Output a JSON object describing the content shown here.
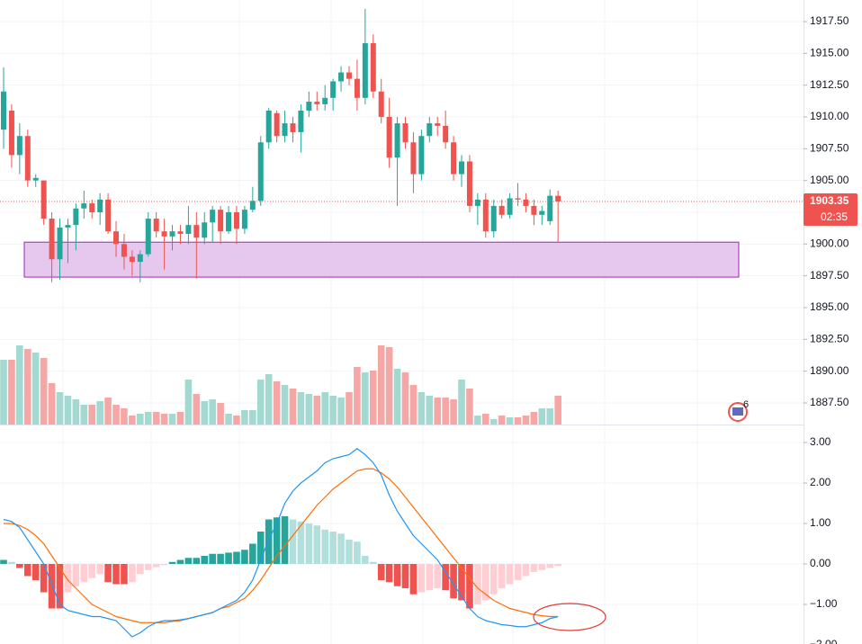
{
  "chart_data": [
    {
      "type": "candlestick",
      "open": [
        1909.0,
        1910.5,
        1907.0,
        1908.5,
        1905.0,
        1905.0,
        1902.0,
        1898.8,
        1901.3,
        1901.5,
        1902.8,
        1903.2,
        1902.5,
        1903.5,
        1901.0,
        1900.0,
        1899.0,
        1898.6,
        1899.2,
        1902.0,
        1901.0,
        1900.6,
        1901.0,
        1900.8,
        1901.5,
        1900.5,
        1901.7,
        1902.7,
        1901.0,
        1902.5,
        1901.2,
        1902.7,
        1903.4,
        1908.0,
        1910.3,
        1908.5,
        1909.5,
        1908.8,
        1910.5,
        1911.2,
        1911.0,
        1911.5,
        1912.8,
        1913.5,
        1913.0,
        1911.5,
        1915.8,
        1912.0,
        1910.0,
        1906.8,
        1909.5,
        1908.0,
        1905.5,
        1908.5,
        1909.5,
        1909.3,
        1908.0,
        1905.5,
        1906.5,
        1903.0,
        1903.5,
        1901.0,
        1903.0,
        1902.3,
        1903.6,
        1903.5,
        1903.0,
        1902.3,
        1901.8,
        1903.8
      ],
      "high": [
        1913.9,
        1911.0,
        1909.5,
        1909.0,
        1905.5,
        1905.0,
        1902.5,
        1902.0,
        1902.0,
        1903.2,
        1904.2,
        1903.5,
        1904.0,
        1904.0,
        1901.8,
        1900.8,
        1899.5,
        1899.5,
        1902.5,
        1902.5,
        1902.0,
        1901.5,
        1901.5,
        1903.0,
        1902.5,
        1902.5,
        1903.0,
        1903.0,
        1903.0,
        1903.0,
        1903.0,
        1904.5,
        1908.5,
        1910.7,
        1910.5,
        1910.5,
        1910.0,
        1911.0,
        1912.0,
        1912.0,
        1912.5,
        1913.0,
        1914.0,
        1914.0,
        1914.5,
        1918.5,
        1916.5,
        1913.0,
        1911.5,
        1910.0,
        1910.0,
        1908.8,
        1909.0,
        1910.0,
        1910.0,
        1910.5,
        1908.5,
        1907.0,
        1907.0,
        1904.0,
        1904.0,
        1903.5,
        1903.5,
        1904.0,
        1904.8,
        1904.0,
        1903.5,
        1903.0,
        1904.3,
        1904.2
      ],
      "low": [
        1907.5,
        1906.0,
        1905.5,
        1904.5,
        1904.5,
        1901.5,
        1897.0,
        1897.2,
        1898.5,
        1899.5,
        1902.0,
        1902.0,
        1901.5,
        1900.8,
        1899.0,
        1898.0,
        1897.5,
        1897.0,
        1899.0,
        1900.5,
        1898.0,
        1899.5,
        1900.0,
        1900.0,
        1897.3,
        1900.0,
        1900.2,
        1900.0,
        1900.8,
        1900.0,
        1900.8,
        1902.5,
        1903.0,
        1907.5,
        1908.0,
        1908.0,
        1908.0,
        1907.2,
        1910.0,
        1910.5,
        1910.5,
        1910.5,
        1912.0,
        1912.5,
        1910.5,
        1911.0,
        1911.5,
        1909.5,
        1906.0,
        1903.0,
        1907.5,
        1904.0,
        1905.0,
        1908.0,
        1908.5,
        1907.5,
        1905.0,
        1904.5,
        1902.5,
        1901.5,
        1900.5,
        1900.5,
        1902.0,
        1902.0,
        1903.0,
        1902.5,
        1901.5,
        1901.5,
        1901.5,
        1900.2
      ],
      "close": [
        1912.0,
        1907.0,
        1908.5,
        1905.0,
        1905.2,
        1902.0,
        1898.8,
        1901.3,
        1901.5,
        1902.8,
        1903.2,
        1902.5,
        1903.5,
        1901.0,
        1900.0,
        1899.0,
        1898.6,
        1899.2,
        1902.0,
        1901.0,
        1900.6,
        1901.0,
        1900.8,
        1901.5,
        1900.5,
        1901.7,
        1902.7,
        1901.0,
        1902.5,
        1901.2,
        1902.7,
        1903.4,
        1908.0,
        1910.5,
        1908.5,
        1909.5,
        1908.8,
        1910.5,
        1911.2,
        1911.0,
        1911.5,
        1912.8,
        1913.5,
        1913.0,
        1911.5,
        1915.8,
        1912.0,
        1910.0,
        1906.8,
        1909.5,
        1908.0,
        1905.5,
        1908.5,
        1909.5,
        1909.3,
        1908.0,
        1905.5,
        1906.5,
        1903.0,
        1903.5,
        1901.0,
        1903.0,
        1902.3,
        1903.6,
        1903.5,
        1903.0,
        1902.3,
        1902.6,
        1903.8,
        1903.35
      ],
      "ylim": [
        1885.8,
        1919.2
      ],
      "yticks": [
        {
          "value": 1887.5,
          "label": "1887.50"
        },
        {
          "value": 1890,
          "label": "1890.00"
        },
        {
          "value": 1892.5,
          "label": "1892.50"
        },
        {
          "value": 1895,
          "label": "1895.00"
        },
        {
          "value": 1897.5,
          "label": "1897.50"
        },
        {
          "value": 1900,
          "label": "1900.00"
        },
        {
          "value": 1902.5,
          "label": "1902.50"
        },
        {
          "value": 1905,
          "label": "1905.00"
        },
        {
          "value": 1907.5,
          "label": "1907.50"
        },
        {
          "value": 1910,
          "label": "1910.00"
        },
        {
          "value": 1912.5,
          "label": "1912.50"
        },
        {
          "value": 1915,
          "label": "1915.00"
        },
        {
          "value": 1917.5,
          "label": "1917.50"
        }
      ],
      "grid": true,
      "up_color": "#26a69a",
      "down_color": "#ef5350",
      "last_price": 1903.35,
      "countdown": "02:35",
      "zone": {
        "high": 1900.15,
        "low": 1897.4,
        "color": "#e6c8ef"
      }
    },
    {
      "type": "volume",
      "values": [
        72,
        72,
        88,
        84,
        80,
        74,
        46,
        36,
        32,
        28,
        22,
        22,
        26,
        30,
        22,
        18,
        10,
        12,
        14,
        14,
        12,
        12,
        14,
        50,
        34,
        26,
        28,
        24,
        12,
        10,
        16,
        16,
        50,
        56,
        48,
        44,
        40,
        36,
        34,
        32,
        36,
        32,
        30,
        36,
        64,
        58,
        60,
        88,
        86,
        62,
        58,
        44,
        36,
        32,
        30,
        30,
        28,
        50,
        40,
        10,
        12,
        6,
        10,
        8,
        8,
        10,
        14,
        18,
        18,
        32
      ],
      "ylim": [
        0,
        100
      ],
      "up_color": "#a3d9d0",
      "down_color": "#f5a7a6"
    },
    {
      "type": "macd",
      "histogram": [
        0.1,
        0.05,
        -0.1,
        -0.3,
        -0.4,
        -0.7,
        -1.1,
        -1.1,
        -0.7,
        -0.55,
        -0.45,
        -0.35,
        -0.25,
        -0.45,
        -0.5,
        -0.5,
        -0.45,
        -0.25,
        -0.15,
        -0.08,
        -0.03,
        0.05,
        0.1,
        0.15,
        0.15,
        0.2,
        0.25,
        0.25,
        0.28,
        0.3,
        0.35,
        0.5,
        0.8,
        1.1,
        1.15,
        1.18,
        1.1,
        1.05,
        1.0,
        0.95,
        0.85,
        0.8,
        0.75,
        0.6,
        0.55,
        0.2,
        0.05,
        -0.4,
        -0.45,
        -0.55,
        -0.6,
        -0.75,
        -0.7,
        -0.65,
        -0.6,
        -0.65,
        -0.85,
        -0.9,
        -1.1,
        -1.0,
        -0.9,
        -0.75,
        -0.6,
        -0.5,
        -0.4,
        -0.3,
        -0.2,
        -0.15,
        -0.1,
        -0.05
      ],
      "macd": [
        1.1,
        1.05,
        0.9,
        0.6,
        0.3,
        0.0,
        -0.5,
        -1.0,
        -1.15,
        -1.2,
        -1.25,
        -1.3,
        -1.3,
        -1.35,
        -1.4,
        -1.6,
        -1.8,
        -1.7,
        -1.55,
        -1.45,
        -1.4,
        -1.4,
        -1.38,
        -1.35,
        -1.3,
        -1.25,
        -1.2,
        -1.1,
        -1.0,
        -0.9,
        -0.7,
        -0.4,
        0.1,
        0.6,
        1.0,
        1.5,
        1.8,
        2.0,
        2.15,
        2.3,
        2.5,
        2.6,
        2.65,
        2.7,
        2.85,
        2.7,
        2.5,
        2.2,
        1.7,
        1.3,
        1.0,
        0.7,
        0.5,
        0.3,
        0.1,
        -0.2,
        -0.5,
        -0.8,
        -1.1,
        -1.3,
        -1.4,
        -1.45,
        -1.5,
        -1.52,
        -1.55,
        -1.55,
        -1.5,
        -1.45,
        -1.35,
        -1.3
      ],
      "signal": [
        1.0,
        1.0,
        0.95,
        0.85,
        0.7,
        0.5,
        0.2,
        -0.1,
        -0.4,
        -0.6,
        -0.8,
        -1.0,
        -1.1,
        -1.2,
        -1.3,
        -1.35,
        -1.4,
        -1.45,
        -1.45,
        -1.45,
        -1.45,
        -1.42,
        -1.4,
        -1.35,
        -1.3,
        -1.25,
        -1.2,
        -1.1,
        -1.05,
        -0.95,
        -0.85,
        -0.65,
        -0.4,
        -0.1,
        0.2,
        0.45,
        0.7,
        0.95,
        1.2,
        1.45,
        1.65,
        1.85,
        2.0,
        2.15,
        2.3,
        2.35,
        2.35,
        2.25,
        2.1,
        1.9,
        1.65,
        1.4,
        1.15,
        0.9,
        0.65,
        0.4,
        0.15,
        -0.1,
        -0.35,
        -0.6,
        -0.75,
        -0.9,
        -1.0,
        -1.1,
        -1.15,
        -1.2,
        -1.25,
        -1.28,
        -1.3,
        -1.3
      ],
      "ylim": [
        -2,
        3.378
      ],
      "yticks": [
        {
          "value": 3,
          "label": "3.00"
        },
        {
          "value": 2,
          "label": "2.00"
        },
        {
          "value": 1,
          "label": "1.00"
        },
        {
          "value": 0,
          "label": "0.00"
        },
        {
          "value": -1,
          "label": "−1.00"
        },
        {
          "value": -2,
          "label": "−2.00"
        }
      ],
      "grid": true,
      "macd_color": "#2196f3",
      "signal_color": "#ff6d00",
      "hist_colors": {
        "pos_up": "#26a69a",
        "pos_down": "#b2dfdb",
        "neg_down": "#ef5350",
        "neg_up": "#ffcdd2"
      }
    }
  ],
  "badge": "6"
}
